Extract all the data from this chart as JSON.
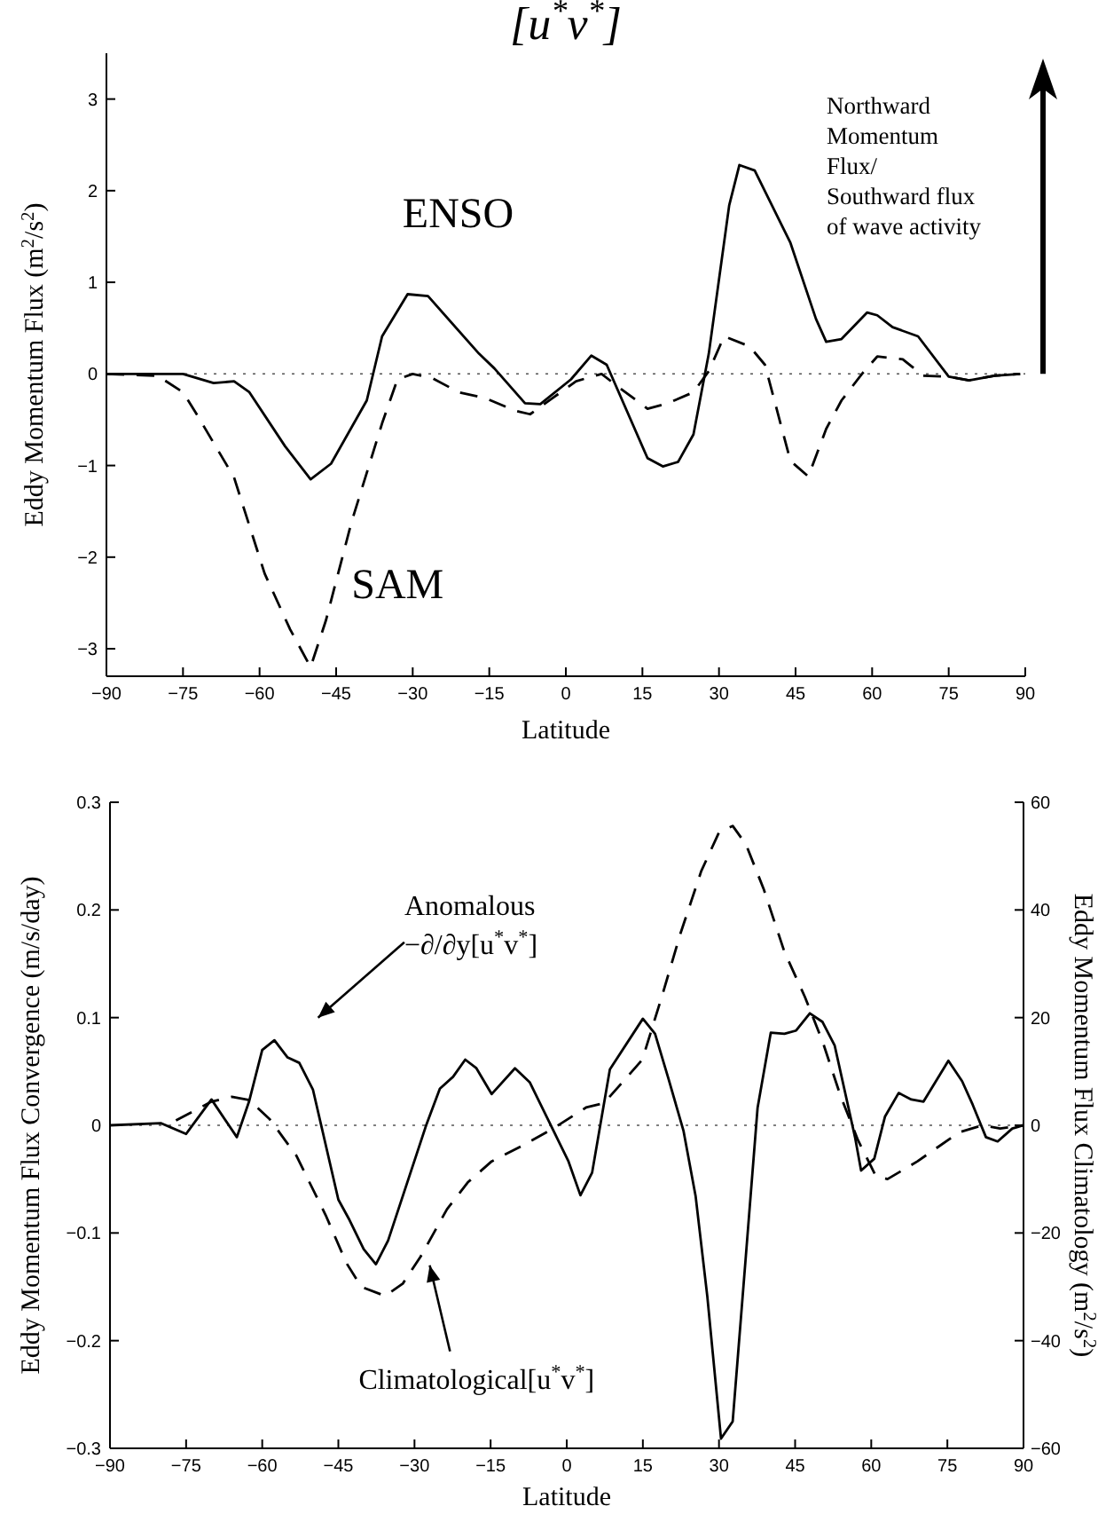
{
  "chart_data": [
    {
      "type": "line",
      "title": "[u$^{*}$v$^{*}$]",
      "xlabel": "Latitude",
      "ylabel": "Eddy Momentum Flux (m$^{2}$/s$^{2}$)",
      "xlim": [
        -90,
        90
      ],
      "xticks": [
        -90,
        -75,
        -60,
        -45,
        -30,
        -15,
        0,
        15,
        30,
        45,
        60,
        75,
        90
      ],
      "ylim": [
        -3.3,
        3.5
      ],
      "yticks": [
        -3,
        -2,
        -1,
        0,
        1,
        2,
        3
      ],
      "ref_lines": [
        {
          "axis": "y",
          "value": 0,
          "line_style": "dotted"
        }
      ],
      "annotations": [
        "Northward\nMomentum\nFlux/\nSouthward flux\nof wave activity"
      ],
      "series": [
        {
          "name": "ENSO",
          "color": "#000000",
          "line_style": "solid",
          "x": [
            -90,
            -75,
            -69,
            -65,
            -62,
            -55,
            -50,
            -46,
            -39,
            -36,
            -31,
            -27,
            -17,
            -14,
            -8,
            -5,
            1,
            5,
            8,
            16,
            19,
            22,
            25,
            28,
            32,
            34,
            37,
            44,
            49,
            51,
            54,
            59,
            61,
            64,
            69,
            75,
            79,
            84,
            89
          ],
          "values": [
            0,
            0,
            -0.1,
            -0.08,
            -0.2,
            -0.79,
            -1.15,
            -0.98,
            -0.29,
            0.41,
            0.87,
            0.85,
            0.22,
            0.06,
            -0.32,
            -0.33,
            -0.06,
            0.2,
            0.1,
            -0.92,
            -1.01,
            -0.96,
            -0.66,
            0.22,
            1.84,
            2.28,
            2.22,
            1.43,
            0.6,
            0.35,
            0.38,
            0.67,
            0.64,
            0.51,
            0.41,
            -0.03,
            -0.07,
            -0.02,
            0
          ]
        },
        {
          "name": "SAM",
          "color": "#000000",
          "line_style": "dashed",
          "x": [
            -90,
            -80,
            -75,
            -72,
            -65,
            -59,
            -54,
            -50,
            -47,
            -42,
            -36,
            -33,
            -30,
            -26,
            -21,
            -16,
            -10,
            -7,
            -2.5,
            2,
            7,
            10,
            16,
            20,
            25,
            28,
            31,
            36,
            39,
            44,
            47.5,
            51,
            54,
            58,
            61,
            66,
            70,
            75,
            79,
            84,
            89
          ],
          "values": [
            0,
            -0.02,
            -0.2,
            -0.47,
            -1.13,
            -2.18,
            -2.79,
            -3.2,
            -2.69,
            -1.62,
            -0.54,
            -0.06,
            0,
            -0.05,
            -0.2,
            -0.26,
            -0.4,
            -0.44,
            -0.26,
            -0.08,
            0,
            -0.13,
            -0.38,
            -0.32,
            -0.2,
            0.03,
            0.41,
            0.3,
            0.1,
            -0.95,
            -1.12,
            -0.6,
            -0.29,
            0,
            0.19,
            0.16,
            -0.02,
            -0.03,
            -0.07,
            -0.02,
            0
          ]
        }
      ]
    },
    {
      "type": "line",
      "xlabel": "Latitude",
      "ylabel": "Eddy Momentum Flux Convergence (m/s/day)",
      "y2label": "Eddy Momentum Flux Climatology (m$^{2}$/s$^{2}$)",
      "xlim": [
        -90,
        90
      ],
      "xticks": [
        -90,
        -75,
        -60,
        -45,
        -30,
        -15,
        0,
        15,
        30,
        45,
        60,
        75,
        90
      ],
      "ylim": [
        -0.3,
        0.3
      ],
      "yticks": [
        -0.3,
        -0.2,
        -0.1,
        0,
        0.1,
        0.2,
        0.3
      ],
      "y2lim": [
        -60,
        60
      ],
      "y2ticks": [
        -60,
        -40,
        -20,
        0,
        20,
        40,
        60
      ],
      "ref_lines": [
        {
          "axis": "y",
          "value": 0,
          "line_style": "dotted"
        }
      ],
      "series": [
        {
          "name": "Anomalous −∂/∂y[u$^{*}$v$^{*}$]",
          "color": "#000000",
          "line_style": "solid",
          "x": [
            -90,
            -80,
            -75,
            -70,
            -65,
            -62.6,
            -60,
            -57.6,
            -55,
            -52.7,
            -50,
            -45,
            -42.8,
            -40,
            -37.6,
            -35.2,
            -27.7,
            -25,
            -22.4,
            -20,
            -17.8,
            -14.8,
            -10.2,
            -7.3,
            0.3,
            2.7,
            5,
            8.5,
            15,
            17.4,
            20,
            23,
            25.4,
            27.7,
            30.4,
            32.7,
            35.3,
            37.6,
            40.2,
            42.9,
            45.2,
            47.9,
            50.4,
            52.8,
            56.8,
            58,
            60.6,
            62.7,
            65.4,
            67.9,
            70.3,
            75.2,
            77.9,
            80,
            82.6,
            84.9,
            87.8,
            90
          ],
          "values": [
            0,
            0.002,
            -0.008,
            0.024,
            -0.011,
            0.022,
            0.07,
            0.079,
            0.063,
            0.058,
            0.033,
            -0.069,
            -0.088,
            -0.115,
            -0.129,
            -0.107,
            0,
            0.034,
            0.045,
            0.061,
            0.053,
            0.029,
            0.053,
            0.04,
            -0.033,
            -0.065,
            -0.044,
            0.052,
            0.099,
            0.085,
            0.044,
            -0.005,
            -0.066,
            -0.159,
            -0.291,
            -0.275,
            -0.121,
            0.016,
            0.086,
            0.085,
            0.088,
            0.104,
            0.096,
            0.074,
            -0.011,
            -0.042,
            -0.031,
            0.008,
            0.03,
            0.024,
            0.022,
            0.06,
            0.041,
            0.019,
            -0.011,
            -0.015,
            -0.003,
            0
          ]
        },
        {
          "name": "Climatological[u$^{*}$v$^{*}$]",
          "color": "#000000",
          "line_style": "dashed",
          "axis": "y2",
          "x": [
            -77,
            -70,
            -66,
            -62.6,
            -58.5,
            -53.3,
            -47.5,
            -43.4,
            -40.5,
            -35.8,
            -32.3,
            -28.8,
            -23.6,
            -19.5,
            -14.8,
            -9,
            -3.2,
            3.8,
            7.3,
            10.8,
            14.9,
            18.9,
            22.4,
            26.5,
            30,
            32.7,
            35.3,
            38.8,
            42.9,
            46.9,
            50.4,
            53.9,
            57.4,
            60.9,
            63.2,
            69.1,
            72.6,
            77.3,
            81.9,
            85.4,
            90
          ],
          "values": [
            0.9,
            4.4,
            5.3,
            4.7,
            1.1,
            -5.6,
            -16.7,
            -25.6,
            -30,
            -31.7,
            -29.4,
            -24.4,
            -15.6,
            -10.6,
            -6.7,
            -3.9,
            -0.9,
            3.3,
            4.1,
            7.8,
            12.2,
            24.4,
            35.6,
            47.2,
            54.4,
            55.6,
            52.2,
            43.9,
            32.2,
            23.9,
            15.6,
            5.6,
            -2.8,
            -9.4,
            -10,
            -6.7,
            -4.4,
            -1.3,
            0,
            -0.6,
            0
          ]
        }
      ]
    }
  ]
}
